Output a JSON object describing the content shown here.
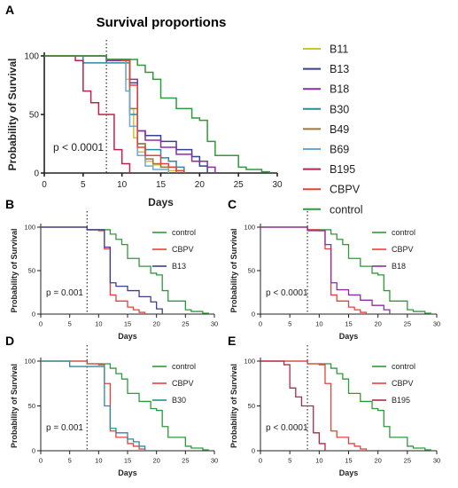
{
  "colors": {
    "control": "#2e9a3b",
    "CBPV": "#e8403a",
    "B11": "#d4c22a",
    "B13": "#3b3f8f",
    "B18": "#8e2e9e",
    "B30": "#2a8aa0",
    "B49": "#9a7a3a",
    "B69": "#6fa8d8",
    "B195": "#b5264a"
  },
  "chart_data": [
    {
      "panel": "A",
      "type": "line",
      "title": "Survival proportions",
      "xlabel": "Days",
      "ylabel": "Probability of Survival",
      "xlim": [
        0,
        30
      ],
      "ylim": [
        0,
        100
      ],
      "xticks": [
        0,
        5,
        10,
        15,
        20,
        25,
        30
      ],
      "yticks": [
        0,
        50,
        100
      ],
      "vline": 8,
      "annotation": "p < 0.0001",
      "legend": "right",
      "series": [
        {
          "name": "B11",
          "color": "#d4c22a",
          "x": [
            0,
            8,
            10,
            10.5,
            11,
            11.5,
            12,
            13,
            14,
            15,
            16,
            18
          ],
          "y": [
            100,
            97,
            97,
            80,
            55,
            30,
            18,
            10,
            7,
            5,
            2,
            0
          ]
        },
        {
          "name": "B13",
          "color": "#3b3f8f",
          "x": [
            0,
            8,
            10,
            11,
            12,
            13,
            15,
            17,
            19,
            20,
            21
          ],
          "y": [
            100,
            97,
            97,
            77,
            36,
            32,
            27,
            20,
            14,
            6,
            0
          ]
        },
        {
          "name": "B18",
          "color": "#8e2e9e",
          "x": [
            0,
            8,
            10,
            11,
            12,
            13,
            15,
            17,
            19,
            21,
            22
          ],
          "y": [
            100,
            96,
            96,
            80,
            36,
            28,
            22,
            16,
            10,
            5,
            0
          ]
        },
        {
          "name": "B30",
          "color": "#2a8aa0",
          "x": [
            0,
            5,
            8,
            10,
            11,
            12,
            13,
            15,
            16,
            17,
            18
          ],
          "y": [
            100,
            94,
            94,
            94,
            50,
            25,
            20,
            13,
            10,
            5,
            0
          ]
        },
        {
          "name": "B49",
          "color": "#9a7a3a",
          "x": [
            0,
            8,
            10,
            11,
            12,
            13,
            14,
            15,
            17
          ],
          "y": [
            100,
            97,
            97,
            55,
            25,
            12,
            8,
            5,
            0
          ]
        },
        {
          "name": "B69",
          "color": "#6fa8d8",
          "x": [
            0,
            8,
            10,
            10.5,
            11,
            12,
            13,
            14,
            16
          ],
          "y": [
            100,
            97,
            97,
            70,
            40,
            15,
            6,
            3,
            0
          ]
        },
        {
          "name": "B195",
          "color": "#b5264a",
          "x": [
            0,
            4,
            5,
            6,
            7,
            8,
            9,
            10,
            11
          ],
          "y": [
            100,
            96,
            70,
            60,
            50,
            50,
            20,
            8,
            0
          ]
        },
        {
          "name": "CBPV",
          "color": "#e8403a",
          "x": [
            0,
            8,
            10,
            11,
            12,
            13,
            15,
            16,
            17,
            18
          ],
          "y": [
            100,
            97,
            96,
            75,
            22,
            15,
            8,
            5,
            2,
            0
          ]
        },
        {
          "name": "control",
          "color": "#2e9a3b",
          "x": [
            0,
            8,
            10,
            12,
            13,
            14,
            15,
            17,
            19,
            20,
            21,
            22,
            25,
            26,
            28,
            29
          ],
          "y": [
            100,
            97,
            97,
            92,
            86,
            80,
            64,
            55,
            47,
            45,
            27,
            15,
            5,
            3,
            1,
            0
          ]
        }
      ]
    },
    {
      "panel": "B",
      "type": "line",
      "title": "",
      "xlabel": "Days",
      "ylabel": "Probability of Survival",
      "xlim": [
        0,
        30
      ],
      "ylim": [
        0,
        100
      ],
      "xticks": [
        0,
        5,
        10,
        15,
        20,
        25,
        30
      ],
      "yticks": [
        0,
        50,
        100
      ],
      "vline": 8,
      "annotation": "p = 0.001",
      "legend": "top-right",
      "series": [
        {
          "name": "control",
          "color": "#2e9a3b",
          "x": [
            0,
            8,
            10,
            12,
            13,
            14,
            15,
            17,
            19,
            20,
            21,
            22,
            25,
            26,
            28,
            29
          ],
          "y": [
            100,
            97,
            97,
            92,
            86,
            80,
            64,
            55,
            47,
            45,
            27,
            15,
            5,
            3,
            1,
            0
          ]
        },
        {
          "name": "CBPV",
          "color": "#e8403a",
          "x": [
            0,
            8,
            10,
            11,
            12,
            13,
            15,
            16,
            17,
            18
          ],
          "y": [
            100,
            97,
            96,
            75,
            22,
            15,
            8,
            5,
            2,
            0
          ]
        },
        {
          "name": "B13",
          "color": "#3b3f8f",
          "x": [
            0,
            8,
            10,
            11,
            12,
            13,
            15,
            17,
            19,
            20,
            21
          ],
          "y": [
            100,
            97,
            97,
            77,
            36,
            32,
            27,
            20,
            14,
            6,
            0
          ]
        }
      ]
    },
    {
      "panel": "C",
      "type": "line",
      "title": "",
      "xlabel": "Days",
      "ylabel": "Probability of Survival",
      "xlim": [
        0,
        30
      ],
      "ylim": [
        0,
        100
      ],
      "xticks": [
        0,
        5,
        10,
        15,
        20,
        25,
        30
      ],
      "yticks": [
        0,
        50,
        100
      ],
      "vline": 8,
      "annotation": "p < 0.0001",
      "legend": "top-right",
      "series": [
        {
          "name": "control",
          "color": "#2e9a3b",
          "x": [
            0,
            8,
            10,
            12,
            13,
            14,
            15,
            17,
            19,
            20,
            21,
            22,
            25,
            26,
            28,
            29
          ],
          "y": [
            100,
            97,
            97,
            92,
            86,
            80,
            64,
            55,
            47,
            45,
            27,
            15,
            5,
            3,
            1,
            0
          ]
        },
        {
          "name": "CBPV",
          "color": "#e8403a",
          "x": [
            0,
            8,
            10,
            11,
            12,
            13,
            15,
            16,
            17,
            18
          ],
          "y": [
            100,
            97,
            96,
            75,
            22,
            15,
            8,
            5,
            2,
            0
          ]
        },
        {
          "name": "B18",
          "color": "#8e2e9e",
          "x": [
            0,
            8,
            10,
            11,
            12,
            13,
            15,
            17,
            19,
            21,
            22
          ],
          "y": [
            100,
            96,
            96,
            80,
            36,
            28,
            22,
            16,
            10,
            5,
            0
          ]
        }
      ]
    },
    {
      "panel": "D",
      "type": "line",
      "title": "",
      "xlabel": "Days",
      "ylabel": "Probability of Survival",
      "xlim": [
        0,
        30
      ],
      "ylim": [
        0,
        100
      ],
      "xticks": [
        0,
        5,
        10,
        15,
        20,
        25,
        30
      ],
      "yticks": [
        0,
        50,
        100
      ],
      "vline": 8,
      "annotation": "p = 0.001",
      "legend": "top-right",
      "series": [
        {
          "name": "control",
          "color": "#2e9a3b",
          "x": [
            0,
            8,
            10,
            12,
            13,
            14,
            15,
            17,
            19,
            20,
            21,
            22,
            25,
            26,
            28,
            29
          ],
          "y": [
            100,
            97,
            97,
            92,
            86,
            80,
            64,
            55,
            47,
            45,
            27,
            15,
            5,
            3,
            1,
            0
          ]
        },
        {
          "name": "CBPV",
          "color": "#e8403a",
          "x": [
            0,
            8,
            10,
            11,
            12,
            13,
            15,
            16,
            17,
            18
          ],
          "y": [
            100,
            97,
            96,
            75,
            22,
            15,
            8,
            5,
            2,
            0
          ]
        },
        {
          "name": "B30",
          "color": "#2a8aa0",
          "x": [
            0,
            5,
            8,
            10,
            11,
            12,
            13,
            15,
            16,
            17,
            18
          ],
          "y": [
            100,
            94,
            94,
            94,
            50,
            25,
            20,
            13,
            10,
            5,
            0
          ]
        }
      ]
    },
    {
      "panel": "E",
      "type": "line",
      "title": "",
      "xlabel": "Days",
      "ylabel": "Probability of Survival",
      "xlim": [
        0,
        30
      ],
      "ylim": [
        0,
        100
      ],
      "xticks": [
        0,
        5,
        10,
        15,
        20,
        25,
        30
      ],
      "yticks": [
        0,
        50,
        100
      ],
      "vline": 8,
      "annotation": "p < 0.0001",
      "legend": "top-right",
      "series": [
        {
          "name": "control",
          "color": "#2e9a3b",
          "x": [
            0,
            8,
            10,
            12,
            13,
            14,
            15,
            17,
            19,
            20,
            21,
            22,
            25,
            26,
            28,
            29
          ],
          "y": [
            100,
            97,
            97,
            92,
            86,
            80,
            64,
            55,
            47,
            45,
            27,
            15,
            5,
            3,
            1,
            0
          ]
        },
        {
          "name": "CBPV",
          "color": "#e8403a",
          "x": [
            0,
            8,
            10,
            11,
            12,
            13,
            15,
            16,
            17,
            18
          ],
          "y": [
            100,
            97,
            96,
            75,
            22,
            15,
            8,
            5,
            2,
            0
          ]
        },
        {
          "name": "B195",
          "color": "#b5264a",
          "x": [
            0,
            4,
            5,
            6,
            7,
            8,
            9,
            10,
            11
          ],
          "y": [
            100,
            96,
            70,
            60,
            50,
            50,
            20,
            8,
            0
          ]
        }
      ]
    }
  ]
}
